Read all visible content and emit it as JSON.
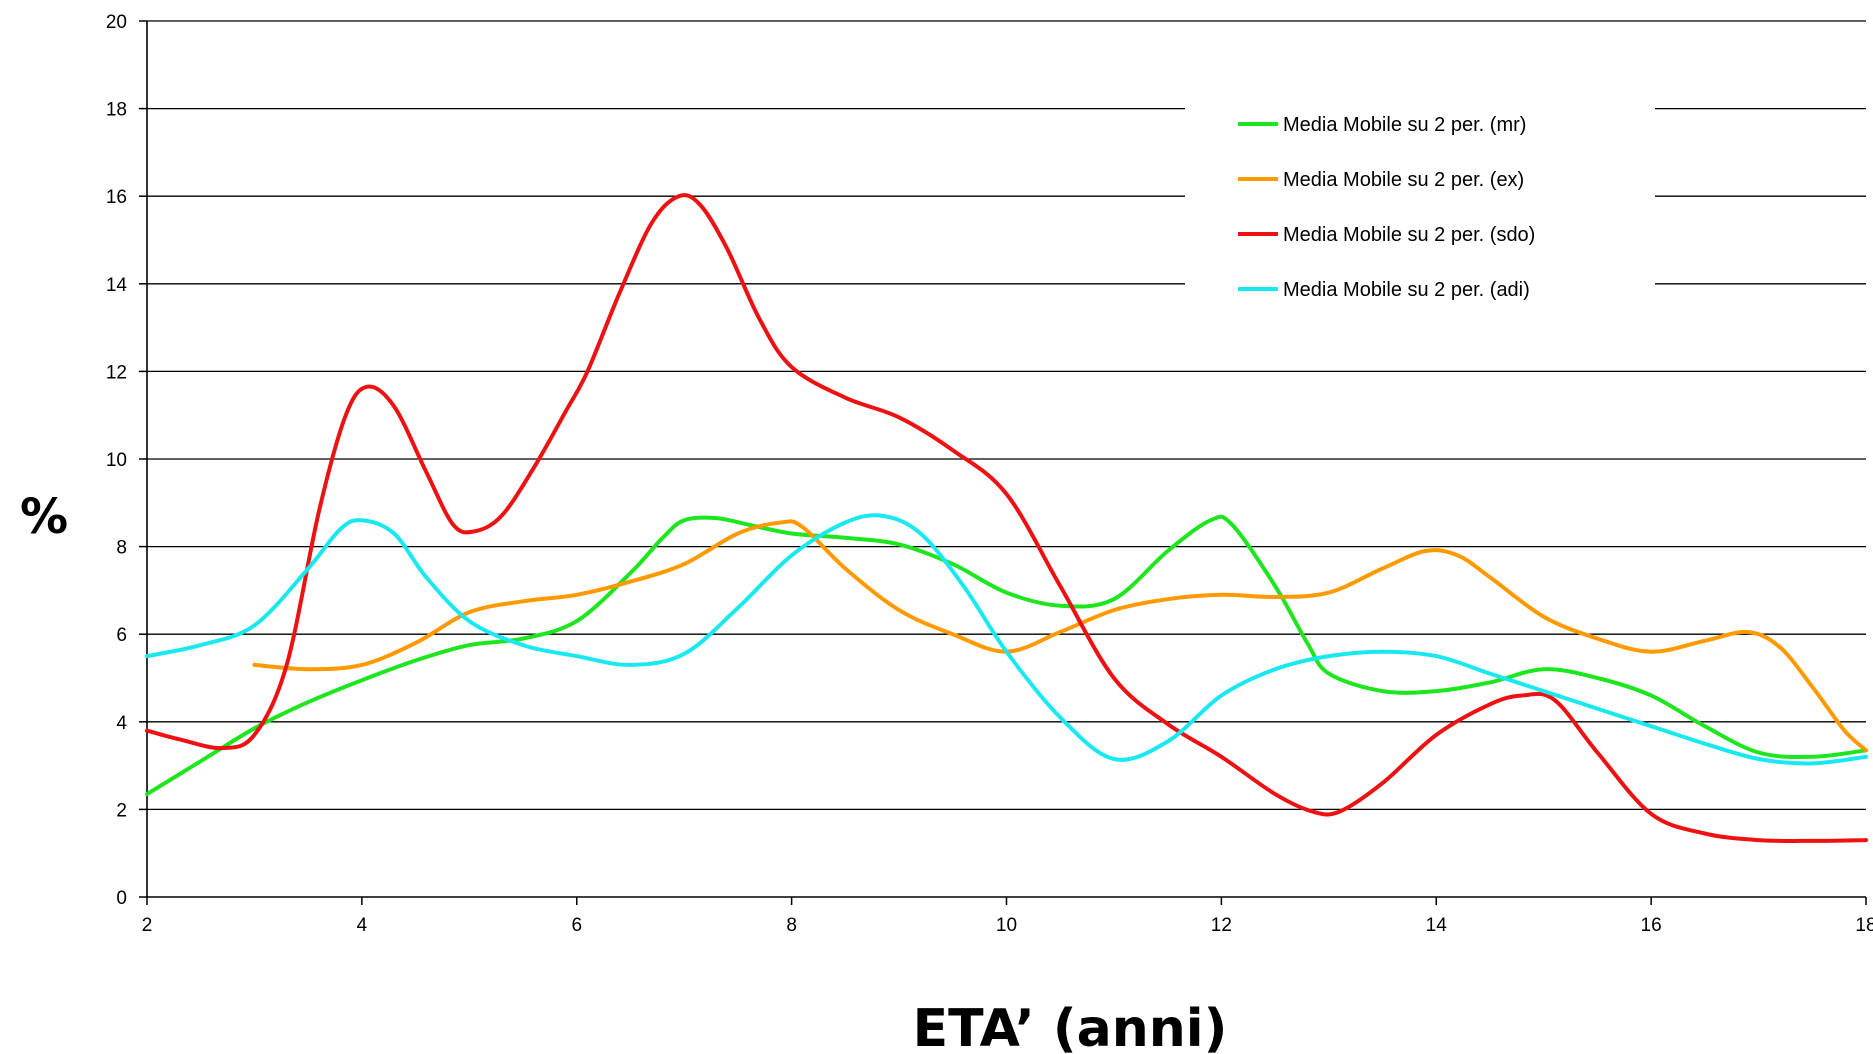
{
  "chart_data": {
    "type": "line",
    "title": "",
    "xlabel": "ETA’ (anni)",
    "ylabel": "%",
    "xlim": [
      2,
      18
    ],
    "ylim": [
      0,
      20
    ],
    "x_ticks": [
      2,
      4,
      6,
      8,
      10,
      12,
      14,
      16,
      18
    ],
    "y_ticks": [
      0,
      2,
      4,
      6,
      8,
      10,
      12,
      14,
      16,
      18,
      20
    ],
    "grid": "horizontal",
    "legend_position": "top-right",
    "series": [
      {
        "name": "Media Mobile su 2 per. (mr)",
        "color": "#1ee61e",
        "points": [
          [
            2,
            2.35
          ],
          [
            2.5,
            3.1
          ],
          [
            3,
            3.85
          ],
          [
            3.5,
            4.45
          ],
          [
            4,
            4.95
          ],
          [
            4.5,
            5.4
          ],
          [
            5,
            5.75
          ],
          [
            5.5,
            5.9
          ],
          [
            6,
            6.3
          ],
          [
            6.5,
            7.4
          ],
          [
            6.8,
            8.2
          ],
          [
            7,
            8.6
          ],
          [
            7.3,
            8.65
          ],
          [
            7.6,
            8.5
          ],
          [
            8,
            8.3
          ],
          [
            8.5,
            8.2
          ],
          [
            9,
            8.05
          ],
          [
            9.5,
            7.6
          ],
          [
            10,
            6.95
          ],
          [
            10.5,
            6.65
          ],
          [
            11,
            6.8
          ],
          [
            11.5,
            7.9
          ],
          [
            11.9,
            8.6
          ],
          [
            12.1,
            8.5
          ],
          [
            12.5,
            7.1
          ],
          [
            12.8,
            5.8
          ],
          [
            13,
            5.1
          ],
          [
            13.5,
            4.7
          ],
          [
            14,
            4.7
          ],
          [
            14.5,
            4.9
          ],
          [
            15,
            5.2
          ],
          [
            15.5,
            5.0
          ],
          [
            16,
            4.6
          ],
          [
            16.5,
            3.9
          ],
          [
            17,
            3.3
          ],
          [
            17.5,
            3.2
          ],
          [
            18,
            3.35
          ]
        ]
      },
      {
        "name": "Media Mobile su 2 per. (ex)",
        "color": "#ff9900",
        "points": [
          [
            3,
            5.3
          ],
          [
            3.5,
            5.2
          ],
          [
            4,
            5.3
          ],
          [
            4.5,
            5.8
          ],
          [
            5,
            6.5
          ],
          [
            5.5,
            6.75
          ],
          [
            6,
            6.9
          ],
          [
            6.5,
            7.2
          ],
          [
            7,
            7.6
          ],
          [
            7.5,
            8.3
          ],
          [
            7.9,
            8.55
          ],
          [
            8.1,
            8.45
          ],
          [
            8.5,
            7.5
          ],
          [
            9,
            6.55
          ],
          [
            9.5,
            6.0
          ],
          [
            10,
            5.6
          ],
          [
            10.5,
            6.05
          ],
          [
            11,
            6.55
          ],
          [
            11.5,
            6.8
          ],
          [
            12,
            6.9
          ],
          [
            12.5,
            6.85
          ],
          [
            13,
            6.95
          ],
          [
            13.5,
            7.5
          ],
          [
            13.9,
            7.9
          ],
          [
            14.2,
            7.8
          ],
          [
            14.5,
            7.3
          ],
          [
            15,
            6.4
          ],
          [
            15.5,
            5.9
          ],
          [
            16,
            5.6
          ],
          [
            16.5,
            5.85
          ],
          [
            16.9,
            6.05
          ],
          [
            17.2,
            5.7
          ],
          [
            17.5,
            4.8
          ],
          [
            17.8,
            3.8
          ],
          [
            18,
            3.35
          ]
        ]
      },
      {
        "name": "Media Mobile su 2 per. (sdo)",
        "color": "#ee1111",
        "points": [
          [
            2,
            3.8
          ],
          [
            2.3,
            3.6
          ],
          [
            2.7,
            3.4
          ],
          [
            3,
            3.7
          ],
          [
            3.3,
            5.3
          ],
          [
            3.6,
            8.8
          ],
          [
            3.85,
            11.0
          ],
          [
            4.05,
            11.65
          ],
          [
            4.3,
            11.2
          ],
          [
            4.6,
            9.7
          ],
          [
            4.85,
            8.5
          ],
          [
            5.05,
            8.35
          ],
          [
            5.3,
            8.7
          ],
          [
            5.6,
            9.8
          ],
          [
            5.9,
            11.1
          ],
          [
            6.1,
            12.0
          ],
          [
            6.4,
            13.8
          ],
          [
            6.7,
            15.4
          ],
          [
            6.95,
            16.0
          ],
          [
            7.15,
            15.8
          ],
          [
            7.4,
            14.8
          ],
          [
            7.7,
            13.2
          ],
          [
            8,
            12.1
          ],
          [
            8.5,
            11.4
          ],
          [
            9,
            10.95
          ],
          [
            9.5,
            10.2
          ],
          [
            10,
            9.2
          ],
          [
            10.5,
            7.1
          ],
          [
            11,
            5.0
          ],
          [
            11.5,
            3.95
          ],
          [
            12,
            3.2
          ],
          [
            12.5,
            2.35
          ],
          [
            12.85,
            1.95
          ],
          [
            13.1,
            1.95
          ],
          [
            13.5,
            2.6
          ],
          [
            14,
            3.7
          ],
          [
            14.5,
            4.4
          ],
          [
            14.8,
            4.6
          ],
          [
            15.1,
            4.5
          ],
          [
            15.5,
            3.3
          ],
          [
            16,
            1.9
          ],
          [
            16.5,
            1.45
          ],
          [
            17,
            1.3
          ],
          [
            17.5,
            1.28
          ],
          [
            18,
            1.3
          ]
        ]
      },
      {
        "name": "Media Mobile su 2 per. (adi)",
        "color": "#1ae8f0",
        "points": [
          [
            2,
            5.5
          ],
          [
            2.5,
            5.75
          ],
          [
            3,
            6.2
          ],
          [
            3.5,
            7.5
          ],
          [
            3.8,
            8.4
          ],
          [
            4,
            8.6
          ],
          [
            4.3,
            8.3
          ],
          [
            4.6,
            7.3
          ],
          [
            5,
            6.3
          ],
          [
            5.5,
            5.75
          ],
          [
            6,
            5.5
          ],
          [
            6.5,
            5.3
          ],
          [
            7,
            5.55
          ],
          [
            7.5,
            6.6
          ],
          [
            8,
            7.8
          ],
          [
            8.5,
            8.55
          ],
          [
            8.85,
            8.7
          ],
          [
            9.2,
            8.3
          ],
          [
            9.6,
            7.1
          ],
          [
            10,
            5.6
          ],
          [
            10.5,
            4.1
          ],
          [
            11,
            3.15
          ],
          [
            11.5,
            3.55
          ],
          [
            12,
            4.6
          ],
          [
            12.5,
            5.2
          ],
          [
            13,
            5.5
          ],
          [
            13.5,
            5.6
          ],
          [
            14,
            5.5
          ],
          [
            14.5,
            5.1
          ],
          [
            15,
            4.7
          ],
          [
            15.5,
            4.3
          ],
          [
            16,
            3.9
          ],
          [
            16.5,
            3.5
          ],
          [
            17,
            3.15
          ],
          [
            17.5,
            3.05
          ],
          [
            18,
            3.2
          ]
        ]
      }
    ]
  }
}
